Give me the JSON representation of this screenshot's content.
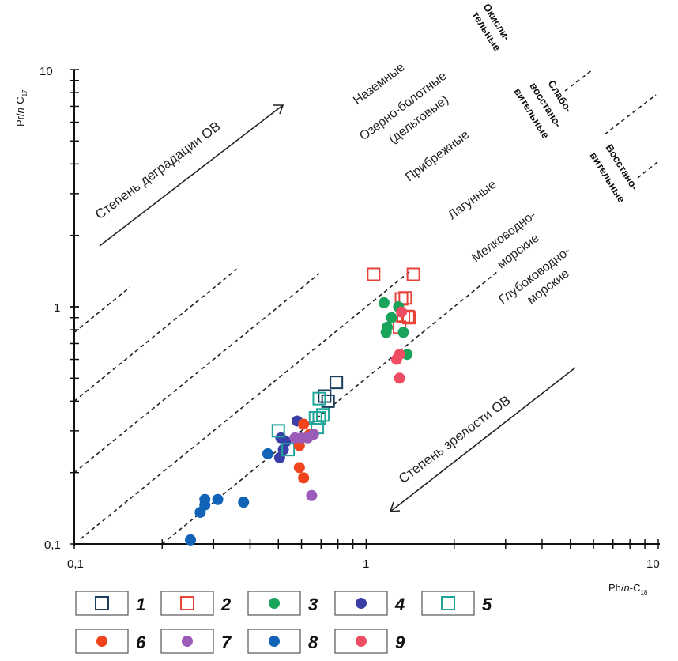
{
  "chart_data": {
    "type": "scatter",
    "title": "",
    "xlabel": "Ph/n-C18",
    "ylabel": "Pr/n-C17",
    "xscale": "log",
    "yscale": "log",
    "xlim": [
      0.1,
      10
    ],
    "ylim": [
      0.1,
      10
    ],
    "x_ticks": [
      {
        "value": 0.1,
        "label": "0,1"
      },
      {
        "value": 1,
        "label": "1"
      },
      {
        "value": 10,
        "label": "10"
      }
    ],
    "y_ticks": [
      {
        "value": 0.1,
        "label": "0,1"
      },
      {
        "value": 1,
        "label": "1"
      },
      {
        "value": 10,
        "label": "10"
      }
    ],
    "grid": false,
    "boundary_lines": [
      {
        "ratio": 7.8,
        "style": "dashed"
      },
      {
        "ratio": 4.0,
        "style": "dashed"
      },
      {
        "ratio": 2.0,
        "style": "dashed"
      },
      {
        "ratio": 1.0,
        "style": "dashed"
      },
      {
        "ratio": 0.5,
        "style": "dashed"
      }
    ],
    "zone_labels": [
      "Наземные",
      "Озерно-болотные",
      "(дельтовые)",
      "Прибрежные",
      "Лагунные",
      "Мелководно-",
      "морские",
      "Глубоководно-",
      "морские"
    ],
    "redox_labels": [
      {
        "lines": [
          "Окисли-",
          "тельные"
        ]
      },
      {
        "lines": [
          "Слабо-",
          "восстано-",
          "вительные"
        ]
      },
      {
        "lines": [
          "Восстано-",
          "вительные"
        ]
      }
    ],
    "annotations": [
      {
        "text": "Степень деградации ОВ",
        "direction": "up-right"
      },
      {
        "text": "Степень зрелости ОВ",
        "direction": "down-left"
      }
    ],
    "legend_position": "bottom",
    "series": [
      {
        "name": "1",
        "marker": "square",
        "color": "#1a3e5c",
        "points": [
          [
            0.79,
            0.48
          ],
          [
            0.72,
            0.42
          ],
          [
            0.74,
            0.4
          ]
        ]
      },
      {
        "name": "2",
        "marker": "square",
        "color": "#e8443a",
        "points": [
          [
            1.06,
            1.37
          ],
          [
            1.45,
            1.37
          ],
          [
            1.32,
            1.08
          ],
          [
            1.36,
            1.09
          ],
          [
            1.39,
            0.91
          ],
          [
            1.34,
            0.91
          ],
          [
            1.3,
            0.82
          ],
          [
            1.4,
            0.9
          ]
        ]
      },
      {
        "name": "3",
        "marker": "circle",
        "color": "#1aa35a",
        "points": [
          [
            1.15,
            1.04
          ],
          [
            1.22,
            0.9
          ],
          [
            1.18,
            0.82
          ],
          [
            1.17,
            0.78
          ],
          [
            1.34,
            0.78
          ],
          [
            1.38,
            0.63
          ],
          [
            1.29,
            1.0
          ]
        ]
      },
      {
        "name": "4",
        "marker": "circle",
        "color": "#3a3fa8",
        "points": [
          [
            0.505,
            0.231
          ],
          [
            0.51,
            0.28
          ],
          [
            0.52,
            0.25
          ],
          [
            0.58,
            0.33
          ],
          [
            0.53,
            0.27
          ]
        ]
      },
      {
        "name": "5",
        "marker": "square",
        "color": "#1fa59a",
        "points": [
          [
            0.5,
            0.3
          ],
          [
            0.54,
            0.25
          ],
          [
            0.69,
            0.41
          ],
          [
            0.69,
            0.34
          ],
          [
            0.67,
            0.34
          ],
          [
            0.68,
            0.31
          ],
          [
            0.71,
            0.35
          ]
        ]
      },
      {
        "name": "6",
        "marker": "circle",
        "color": "#f0441c",
        "points": [
          [
            0.61,
            0.32
          ],
          [
            0.59,
            0.26
          ],
          [
            0.59,
            0.21
          ],
          [
            0.61,
            0.19
          ],
          [
            0.64,
            0.29
          ]
        ]
      },
      {
        "name": "7",
        "marker": "circle",
        "color": "#9b5bb8",
        "points": [
          [
            0.57,
            0.28
          ],
          [
            0.6,
            0.28
          ],
          [
            0.63,
            0.28
          ],
          [
            0.66,
            0.29
          ],
          [
            0.65,
            0.16
          ]
        ]
      },
      {
        "name": "8",
        "marker": "circle",
        "color": "#1163b8",
        "points": [
          [
            0.25,
            0.104
          ],
          [
            0.28,
            0.154
          ],
          [
            0.28,
            0.146
          ],
          [
            0.27,
            0.136
          ],
          [
            0.31,
            0.154
          ],
          [
            0.38,
            0.15
          ],
          [
            0.46,
            0.24
          ]
        ]
      },
      {
        "name": "9",
        "marker": "circle",
        "color": "#ee4d64",
        "points": [
          [
            1.3,
            0.63
          ],
          [
            1.27,
            0.6
          ],
          [
            1.3,
            0.5
          ],
          [
            1.32,
            0.95
          ]
        ]
      }
    ]
  }
}
